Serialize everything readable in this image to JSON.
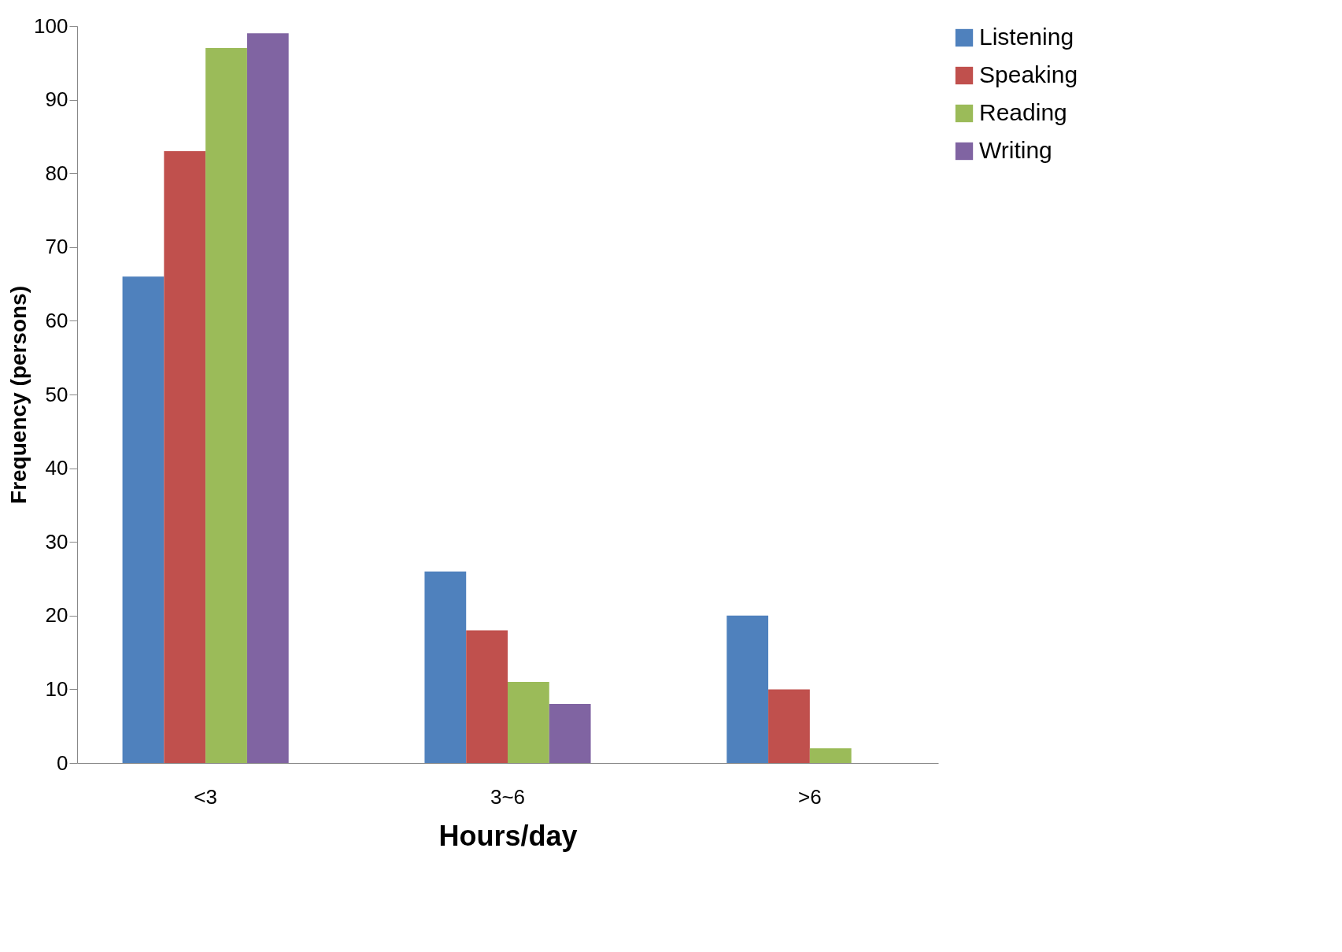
{
  "chart_data": {
    "type": "bar",
    "xlabel": "Hours/day",
    "ylabel": "Frequency (persons)",
    "categories": [
      "<3",
      "3~6",
      ">6"
    ],
    "series": [
      {
        "name": "Listening",
        "color": "#4f81bd",
        "values": [
          66,
          26,
          20
        ]
      },
      {
        "name": "Speaking",
        "color": "#c0504d",
        "values": [
          83,
          18,
          10
        ]
      },
      {
        "name": "Reading",
        "color": "#9bbb59",
        "values": [
          97,
          11,
          2
        ]
      },
      {
        "name": "Writing",
        "color": "#8064a2",
        "values": [
          99,
          8,
          null
        ]
      }
    ],
    "ylim": [
      0,
      100
    ],
    "yticks": [
      0,
      10,
      20,
      30,
      40,
      50,
      60,
      70,
      80,
      90,
      100
    ],
    "grid": false,
    "legend": "right"
  }
}
